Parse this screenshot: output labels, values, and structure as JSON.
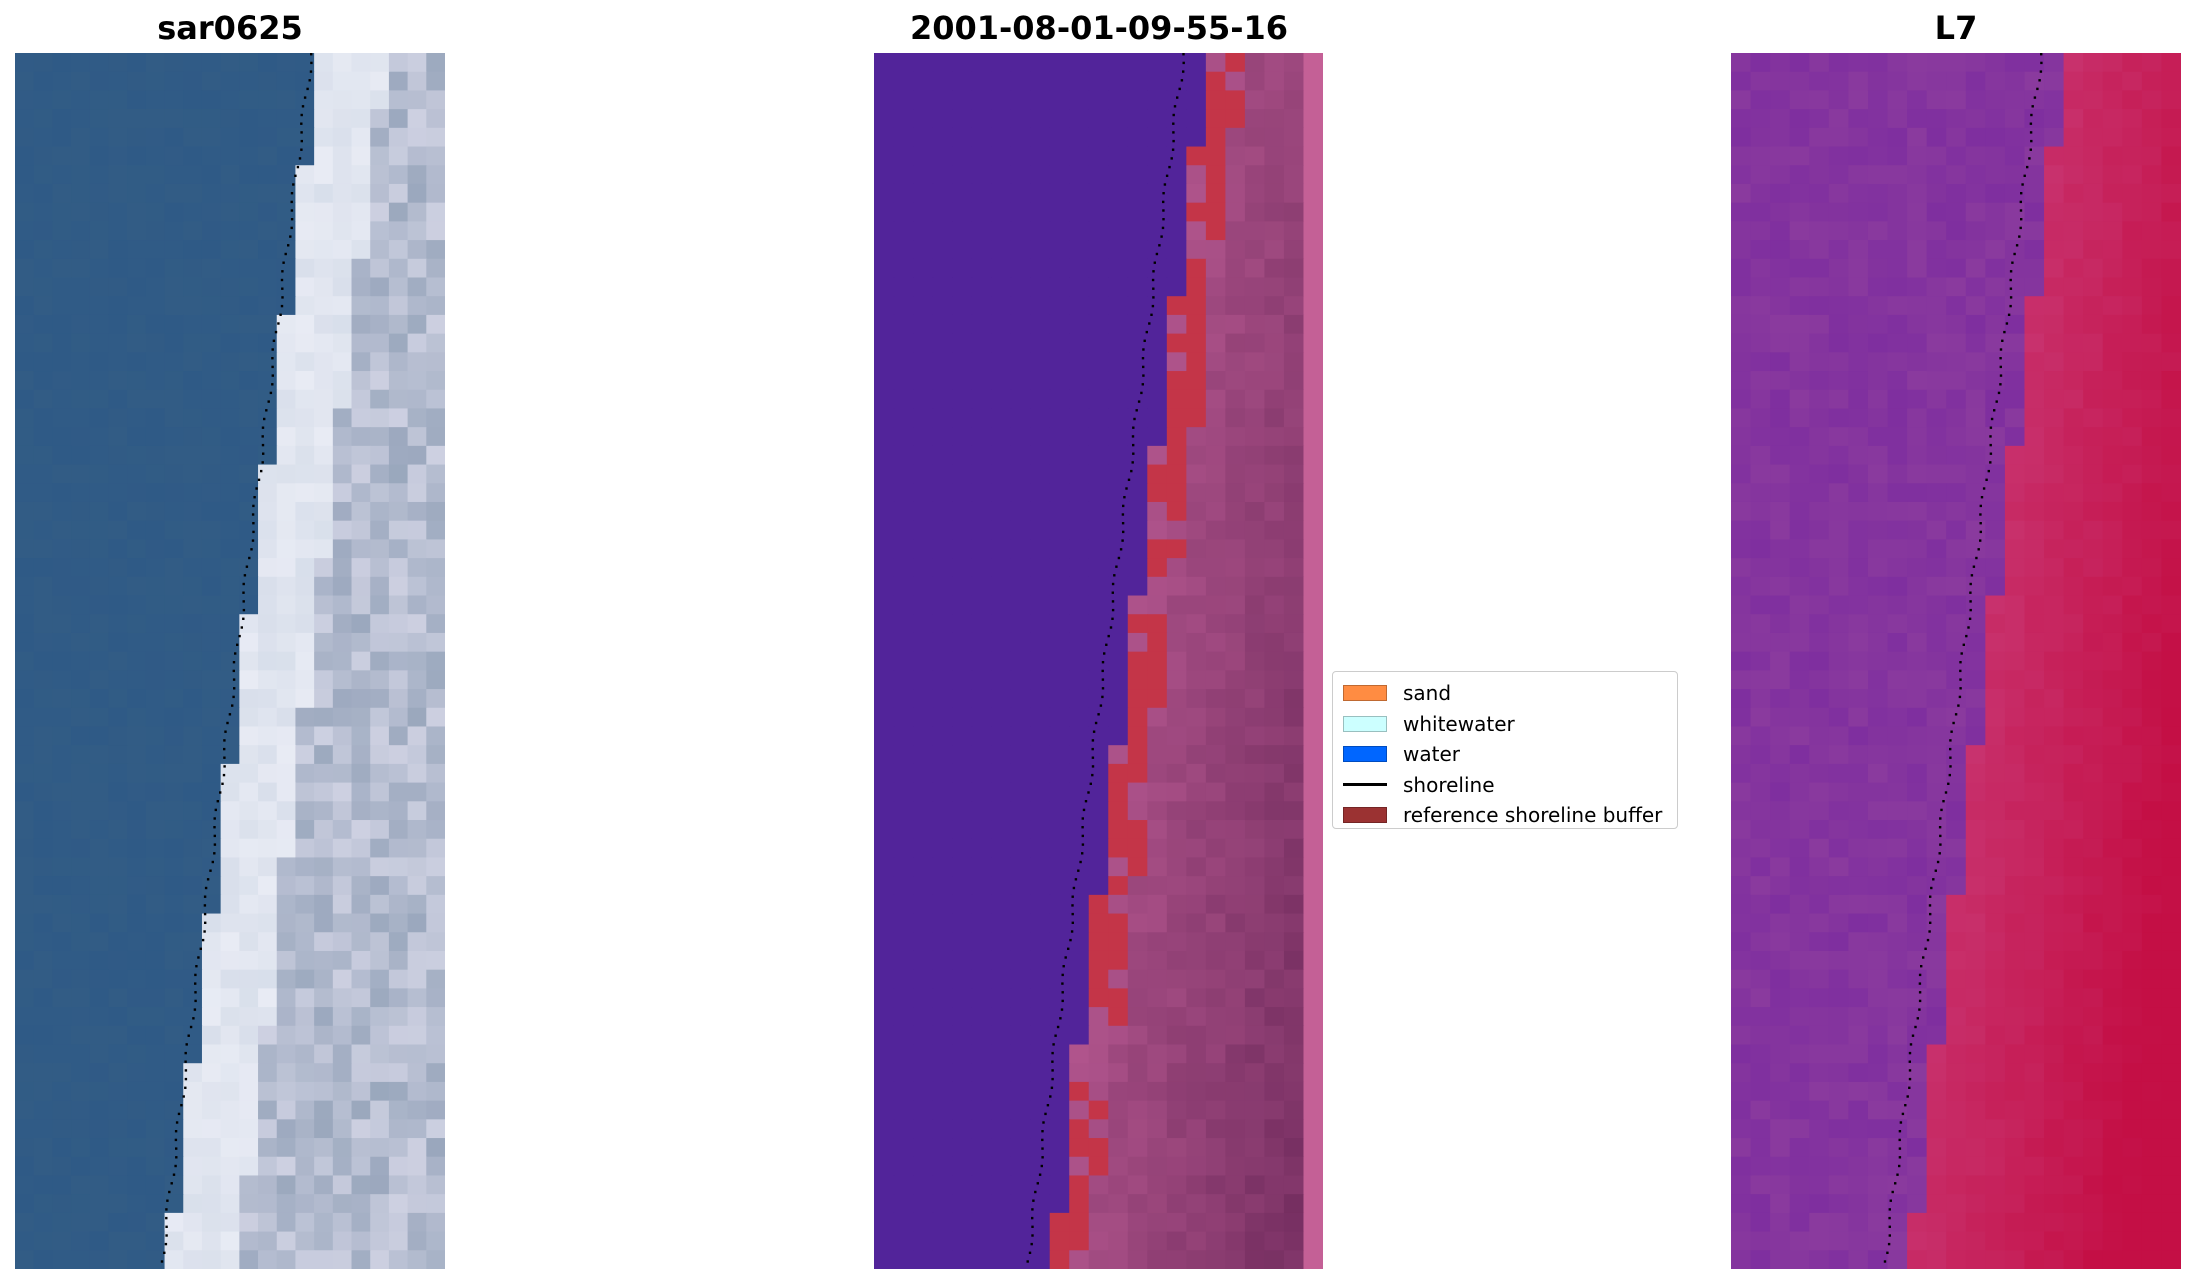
{
  "panels": [
    {
      "title": "sar0625",
      "kind": "rgb"
    },
    {
      "title": "2001-08-01-09-55-16",
      "kind": "classified"
    },
    {
      "title": "L7",
      "kind": "index"
    }
  ],
  "legend": {
    "items": [
      {
        "label": "sand",
        "color": "#ff8c42",
        "type": "patch"
      },
      {
        "label": "whitewater",
        "color": "#ccffff",
        "type": "patch"
      },
      {
        "label": "water",
        "color": "#0066ff",
        "type": "patch"
      },
      {
        "label": "shoreline",
        "color": "#000000",
        "type": "line"
      },
      {
        "label": "reference shoreline buffer",
        "color": "#9b3232",
        "type": "patch"
      }
    ]
  },
  "colors": {
    "sea_rgb": "#2f5a86",
    "beach_rgb": "#e8ebf4",
    "classified_water": "#52249a",
    "classified_land": "#b0548c",
    "classified_buffer": "#c43548",
    "index_low": "#8a3a9e",
    "index_high": "#c40f45"
  }
}
